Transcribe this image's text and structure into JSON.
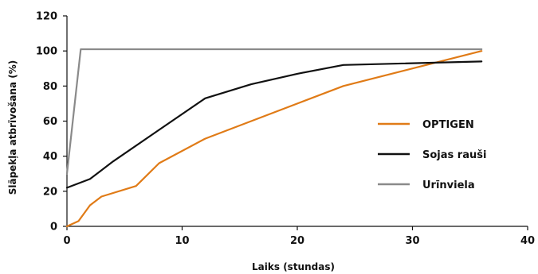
{
  "chart_data": {
    "type": "line",
    "title": "",
    "xlabel": "Laiks (stundas)",
    "ylabel": "Slāpekļa atbrīvošana (%)",
    "xlim": [
      0,
      40
    ],
    "ylim": [
      0,
      120
    ],
    "xticks": [
      0,
      10,
      20,
      30,
      40
    ],
    "yticks": [
      0,
      20,
      40,
      60,
      80,
      100,
      120
    ],
    "grid": false,
    "legend_position": "right",
    "series": [
      {
        "name": "OPTIGEN",
        "color": "#e07b17",
        "points": [
          [
            0,
            0
          ],
          [
            1,
            3
          ],
          [
            2,
            12
          ],
          [
            3,
            17
          ],
          [
            6,
            23
          ],
          [
            8,
            36
          ],
          [
            12,
            50
          ],
          [
            16,
            60
          ],
          [
            24,
            80
          ],
          [
            36,
            100
          ]
        ]
      },
      {
        "name": "Sojas rauši",
        "color": "#111111",
        "points": [
          [
            0,
            22
          ],
          [
            2,
            27
          ],
          [
            4,
            37
          ],
          [
            8,
            55
          ],
          [
            12,
            73
          ],
          [
            16,
            81
          ],
          [
            20,
            87
          ],
          [
            24,
            92
          ],
          [
            36,
            94
          ]
        ]
      },
      {
        "name": "Urīnviela",
        "color": "#8a8a8a",
        "points": [
          [
            0,
            30
          ],
          [
            1.2,
            101
          ],
          [
            36,
            101
          ]
        ]
      }
    ]
  }
}
